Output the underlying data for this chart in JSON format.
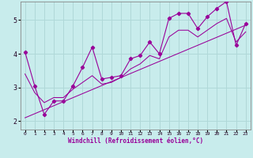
{
  "xlabel": "Windchill (Refroidissement éolien,°C)",
  "background_color": "#c8ecec",
  "grid_color": "#b0d8d8",
  "line_color": "#990099",
  "xlim": [
    -0.5,
    23.5
  ],
  "ylim": [
    1.75,
    5.55
  ],
  "xticks": [
    0,
    1,
    2,
    3,
    4,
    5,
    6,
    7,
    8,
    9,
    10,
    11,
    12,
    13,
    14,
    15,
    16,
    17,
    18,
    19,
    20,
    21,
    22,
    23
  ],
  "yticks": [
    2,
    3,
    4,
    5
  ],
  "series1_x": [
    0,
    1,
    2,
    3,
    4,
    5,
    6,
    7,
    8,
    9,
    10,
    11,
    12,
    13,
    14,
    15,
    16,
    17,
    18,
    19,
    20,
    21,
    22,
    23
  ],
  "series1_y": [
    4.05,
    3.05,
    2.2,
    2.6,
    2.6,
    3.05,
    3.6,
    4.2,
    3.25,
    3.3,
    3.35,
    3.85,
    3.95,
    4.35,
    4.0,
    5.05,
    5.2,
    5.2,
    4.75,
    5.1,
    5.35,
    5.55,
    4.25,
    4.9
  ],
  "series2_y": [
    3.4,
    2.85,
    2.55,
    2.7,
    2.7,
    2.95,
    3.15,
    3.35,
    3.1,
    3.15,
    3.3,
    3.55,
    3.7,
    3.95,
    3.85,
    4.5,
    4.7,
    4.7,
    4.5,
    4.7,
    4.9,
    5.05,
    4.35,
    4.65
  ],
  "trend_x": [
    0,
    23
  ],
  "trend_y": [
    2.1,
    4.85
  ],
  "xlabel_color": "#990099",
  "spine_color": "#888888"
}
